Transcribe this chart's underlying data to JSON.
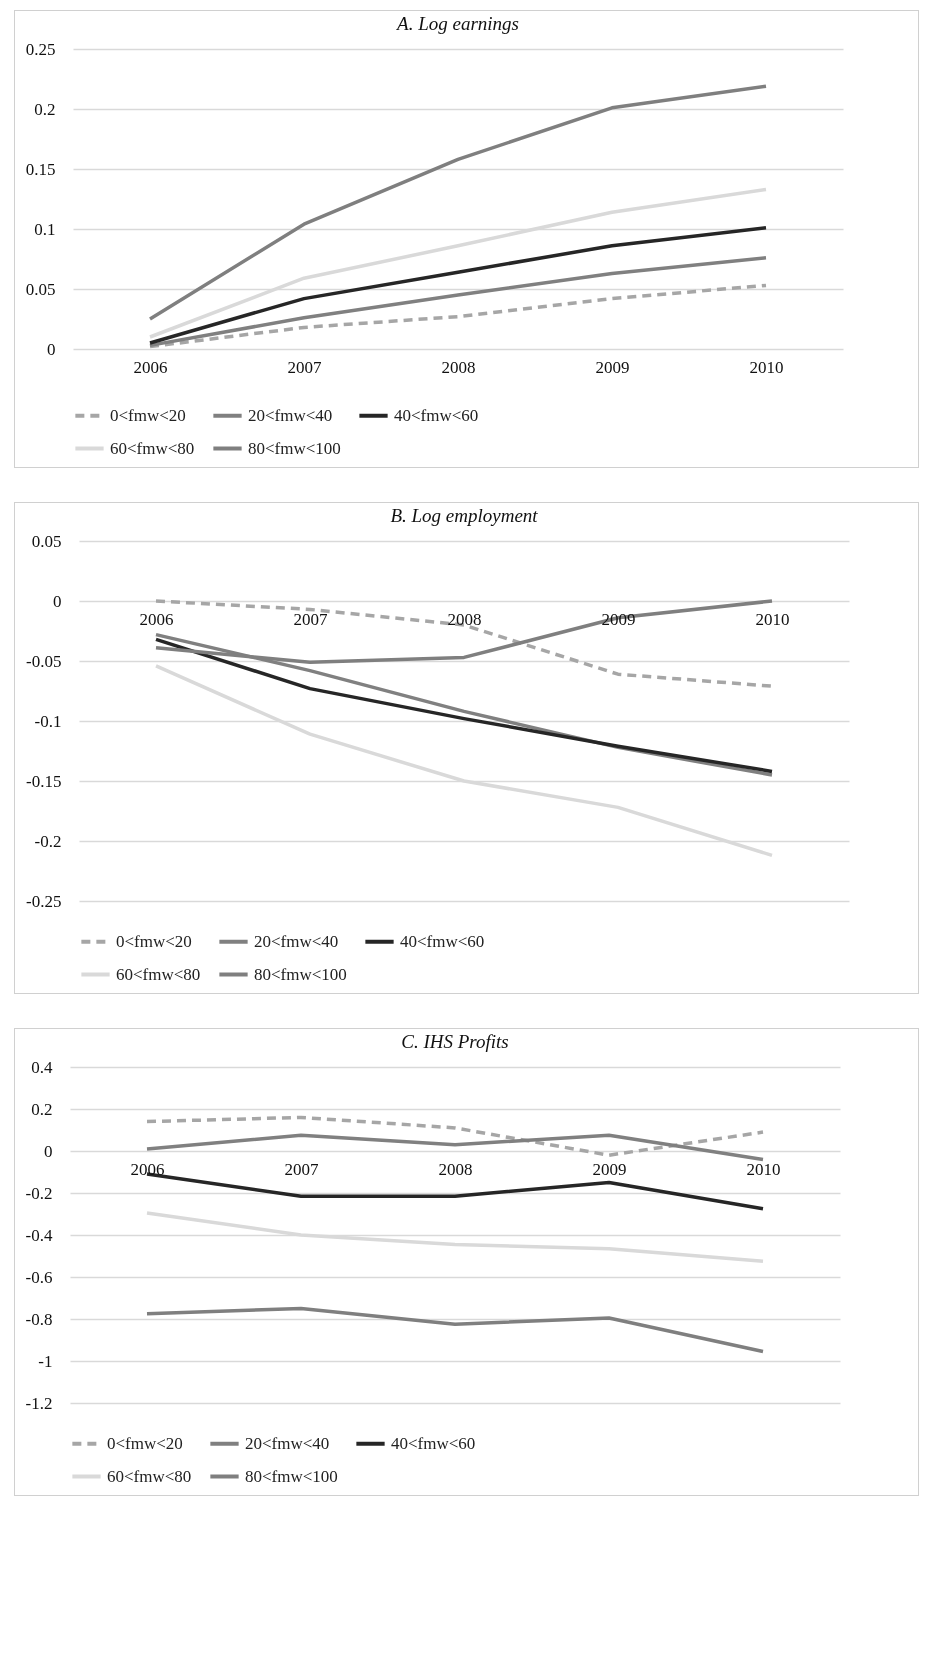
{
  "chart_data": [
    {
      "type": "line",
      "title": "A. Log earnings",
      "categories": [
        "2006",
        "2007",
        "2008",
        "2009",
        "2010"
      ],
      "ylim": [
        0,
        0.25
      ],
      "yticks": [
        0,
        0.05,
        0.1,
        0.15,
        0.2,
        0.25
      ],
      "grid": "y",
      "legend": "bottom",
      "series": [
        {
          "name": "0<fmw<20",
          "color": "#a6a6a6",
          "line_style": "dashed",
          "values": [
            0.002,
            0.018,
            0.027,
            0.042,
            0.053
          ]
        },
        {
          "name": "20<fmw<40",
          "color": "#808080",
          "line_style": "solid",
          "values": [
            0.003,
            0.026,
            0.045,
            0.063,
            0.076
          ]
        },
        {
          "name": "40<fmw<60",
          "color": "#262626",
          "line_style": "solid",
          "values": [
            0.005,
            0.042,
            0.064,
            0.086,
            0.101
          ]
        },
        {
          "name": "60<fmw<80",
          "color": "#d9d9d9",
          "line_style": "solid",
          "values": [
            0.01,
            0.059,
            0.086,
            0.114,
            0.133
          ]
        },
        {
          "name": "80<fmw<100",
          "color": "#7f7f7f",
          "line_style": "solid",
          "values": [
            0.025,
            0.104,
            0.158,
            0.201,
            0.219
          ]
        }
      ]
    },
    {
      "type": "line",
      "title": "B. Log employment",
      "categories": [
        "2006",
        "2007",
        "2008",
        "2009",
        "2010"
      ],
      "ylim": [
        -0.25,
        0.05
      ],
      "yticks": [
        -0.25,
        -0.2,
        -0.15,
        -0.1,
        -0.05,
        0,
        0.05
      ],
      "grid": "y",
      "legend": "bottom",
      "series": [
        {
          "name": "0<fmw<20",
          "color": "#a6a6a6",
          "line_style": "dashed",
          "values": [
            0,
            -0.007,
            -0.02,
            -0.061,
            -0.071
          ]
        },
        {
          "name": "20<fmw<40",
          "color": "#808080",
          "line_style": "solid",
          "values": [
            -0.028,
            -0.058,
            -0.092,
            -0.122,
            -0.145
          ]
        },
        {
          "name": "40<fmw<60",
          "color": "#262626",
          "line_style": "solid",
          "values": [
            -0.032,
            -0.073,
            -0.098,
            -0.121,
            -0.142
          ]
        },
        {
          "name": "60<fmw<80",
          "color": "#d9d9d9",
          "line_style": "solid",
          "values": [
            -0.054,
            -0.111,
            -0.15,
            -0.172,
            -0.212
          ]
        },
        {
          "name": "80<fmw<100",
          "color": "#7f7f7f",
          "line_style": "solid",
          "values": [
            -0.039,
            -0.051,
            -0.047,
            -0.014,
            0
          ]
        }
      ]
    },
    {
      "type": "line",
      "title": "C. IHS Profits",
      "categories": [
        "2006",
        "2007",
        "2008",
        "2009",
        "2010"
      ],
      "ylim": [
        -1.2,
        0.4
      ],
      "yticks": [
        -1.2,
        -1,
        -0.8,
        -0.6,
        -0.4,
        -0.2,
        0,
        0.2,
        0.4
      ],
      "grid": "y",
      "legend": "bottom",
      "series": [
        {
          "name": "0<fmw<20",
          "color": "#a6a6a6",
          "line_style": "dashed",
          "values": [
            0.14,
            0.16,
            0.11,
            -0.02,
            0.09
          ]
        },
        {
          "name": "20<fmw<40",
          "color": "#808080",
          "line_style": "solid",
          "values": [
            0.01,
            0.075,
            0.03,
            0.075,
            -0.04
          ]
        },
        {
          "name": "40<fmw<60",
          "color": "#262626",
          "line_style": "solid",
          "values": [
            -0.11,
            -0.215,
            -0.215,
            -0.15,
            -0.275
          ]
        },
        {
          "name": "60<fmw<80",
          "color": "#d9d9d9",
          "line_style": "solid",
          "values": [
            -0.295,
            -0.4,
            -0.445,
            -0.465,
            -0.525
          ]
        },
        {
          "name": "80<fmw<100",
          "color": "#7f7f7f",
          "line_style": "solid",
          "values": [
            -0.775,
            -0.75,
            -0.825,
            -0.795,
            -0.955
          ]
        }
      ]
    }
  ]
}
